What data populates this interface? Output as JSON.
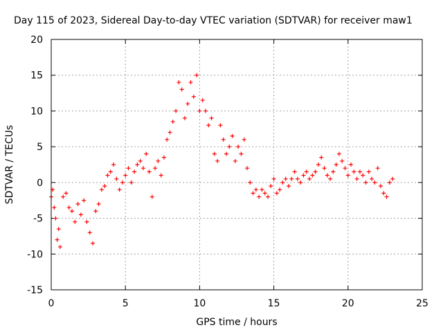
{
  "chart_data": {
    "type": "scatter",
    "title": "Day 115 of 2023, Sidereal Day-to-day VTEC variation (SDTVAR) for receiver maw1",
    "xlabel": "GPS time / hours",
    "ylabel": "SDTVAR / TECUs",
    "xlim": [
      0,
      25
    ],
    "ylim": [
      -15,
      20
    ],
    "xticks": [
      "0",
      "5",
      "10",
      "15",
      "20",
      "25"
    ],
    "yticks": [
      "-15",
      "-10",
      "-5",
      "0",
      "5",
      "10",
      "15",
      "20"
    ],
    "grid": true,
    "marker": "+",
    "color": "#ff0000",
    "series": [
      {
        "name": "SDTVAR",
        "x": [
          0.0,
          0.1,
          0.2,
          0.3,
          0.4,
          0.5,
          0.6,
          0.8,
          1.0,
          1.2,
          1.4,
          1.6,
          1.8,
          2.0,
          2.2,
          2.4,
          2.6,
          2.8,
          3.0,
          3.2,
          3.4,
          3.6,
          3.8,
          4.0,
          4.2,
          4.4,
          4.6,
          4.8,
          5.0,
          5.2,
          5.4,
          5.6,
          5.8,
          6.0,
          6.2,
          6.4,
          6.6,
          6.8,
          7.0,
          7.2,
          7.4,
          7.6,
          7.8,
          8.0,
          8.2,
          8.4,
          8.6,
          8.8,
          9.0,
          9.2,
          9.4,
          9.6,
          9.8,
          10.0,
          10.2,
          10.4,
          10.6,
          10.8,
          11.0,
          11.2,
          11.4,
          11.6,
          11.8,
          12.0,
          12.2,
          12.4,
          12.6,
          12.8,
          13.0,
          13.2,
          13.4,
          13.6,
          13.8,
          14.0,
          14.2,
          14.4,
          14.6,
          14.8,
          15.0,
          15.2,
          15.4,
          15.6,
          15.8,
          16.0,
          16.2,
          16.4,
          16.6,
          16.8,
          17.0,
          17.2,
          17.4,
          17.6,
          17.8,
          18.0,
          18.2,
          18.4,
          18.6,
          18.8,
          19.0,
          19.2,
          19.4,
          19.6,
          19.8,
          20.0,
          20.2,
          20.4,
          20.6,
          20.8,
          21.0,
          21.2,
          21.4,
          21.6,
          21.8,
          22.0,
          22.2,
          22.4,
          22.6,
          22.8,
          23.0
        ],
        "y": [
          -2.0,
          -1.0,
          -3.5,
          -5.0,
          -8.0,
          -6.5,
          -9.0,
          -2.0,
          -1.5,
          -3.5,
          -4.0,
          -5.5,
          -3.0,
          -4.5,
          -2.5,
          -5.5,
          -7.0,
          -8.5,
          -4.0,
          -3.0,
          -1.0,
          -0.5,
          1.0,
          1.5,
          2.5,
          0.5,
          -1.0,
          0.0,
          1.0,
          2.0,
          0.0,
          1.5,
          2.5,
          3.0,
          2.0,
          4.0,
          1.5,
          -2.0,
          2.0,
          3.0,
          1.0,
          3.5,
          6.0,
          7.0,
          8.5,
          10.0,
          14.0,
          13.0,
          9.0,
          11.0,
          14.0,
          12.0,
          15.0,
          10.0,
          11.5,
          10.0,
          8.0,
          9.0,
          4.0,
          3.0,
          8.0,
          6.0,
          4.0,
          5.0,
          6.5,
          3.0,
          5.0,
          4.0,
          6.0,
          2.0,
          0.0,
          -1.5,
          -1.0,
          -2.0,
          -1.0,
          -1.5,
          -2.0,
          -0.5,
          0.5,
          -1.5,
          -1.0,
          0.0,
          0.5,
          -0.5,
          0.5,
          1.5,
          0.5,
          0.0,
          1.0,
          1.5,
          0.5,
          1.0,
          1.5,
          2.5,
          3.5,
          2.0,
          1.0,
          0.5,
          1.5,
          2.5,
          4.0,
          3.0,
          2.0,
          1.0,
          2.5,
          1.5,
          0.5,
          1.5,
          1.0,
          0.0,
          1.5,
          0.5,
          0.0,
          2.0,
          -0.5,
          -1.5,
          -2.0,
          0.0,
          0.5
        ]
      }
    ]
  }
}
